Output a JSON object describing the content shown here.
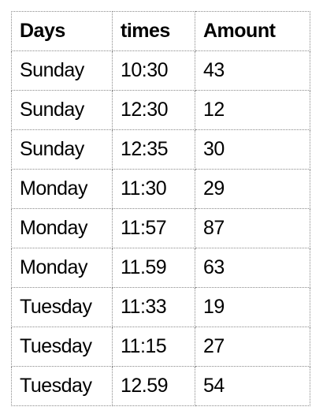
{
  "table": {
    "headers": [
      "Days",
      "times",
      "Amount"
    ],
    "rows": [
      [
        "Sunday",
        "10:30",
        "43"
      ],
      [
        "Sunday",
        "12:30",
        "12"
      ],
      [
        "Sunday",
        "12:35",
        "30"
      ],
      [
        "Monday",
        "11:30",
        "29"
      ],
      [
        "Monday",
        "11:57",
        "87"
      ],
      [
        "Monday",
        "11.59",
        "63"
      ],
      [
        "Tuesday",
        "11:33",
        "19"
      ],
      [
        "Tuesday",
        "11:15",
        "27"
      ],
      [
        "Tuesday",
        "12.59",
        "54"
      ]
    ]
  }
}
